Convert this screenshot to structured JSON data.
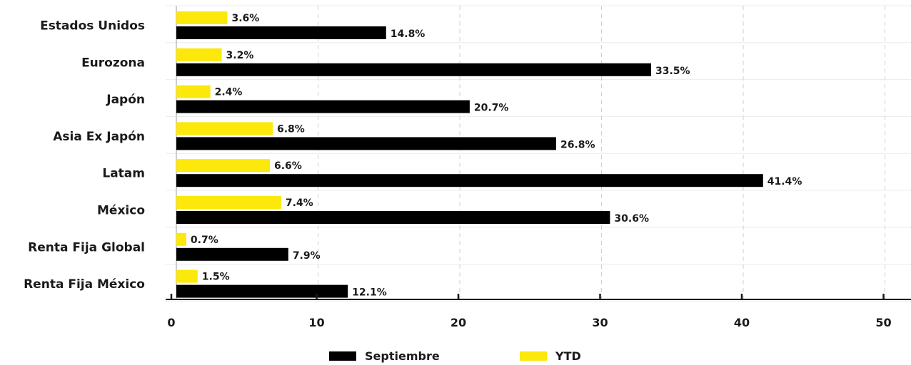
{
  "chart_data": {
    "type": "bar",
    "orientation": "horizontal",
    "categories": [
      "Estados Unidos",
      "Eurozona",
      "Japón",
      "Asia Ex Japón",
      "Latam",
      "México",
      "Renta Fija Global",
      "Renta Fija México"
    ],
    "series": [
      {
        "name": "YTD",
        "color": "#fce80a",
        "values": [
          3.6,
          3.2,
          2.4,
          6.8,
          6.6,
          7.4,
          0.7,
          1.5
        ],
        "labels": [
          "3.6%",
          "3.2%",
          "2.4%",
          "6.8%",
          "6.6%",
          "7.4%",
          "0.7%",
          "1.5%"
        ]
      },
      {
        "name": "Septiembre",
        "color": "#000000",
        "values": [
          14.8,
          33.5,
          20.7,
          26.8,
          41.4,
          30.6,
          7.9,
          12.1
        ],
        "labels": [
          "14.8%",
          "33.5%",
          "20.7%",
          "26.8%",
          "41.4%",
          "30.6%",
          "7.9%",
          "12.1%"
        ]
      }
    ],
    "xlim": [
      0,
      50
    ],
    "xticks": [
      "0",
      "10",
      "20",
      "30",
      "40",
      "50"
    ],
    "grid": true,
    "legend": {
      "position": "bottom-center",
      "order": [
        "Septiembre",
        "YTD"
      ]
    },
    "title": "",
    "xlabel": "",
    "ylabel": ""
  }
}
